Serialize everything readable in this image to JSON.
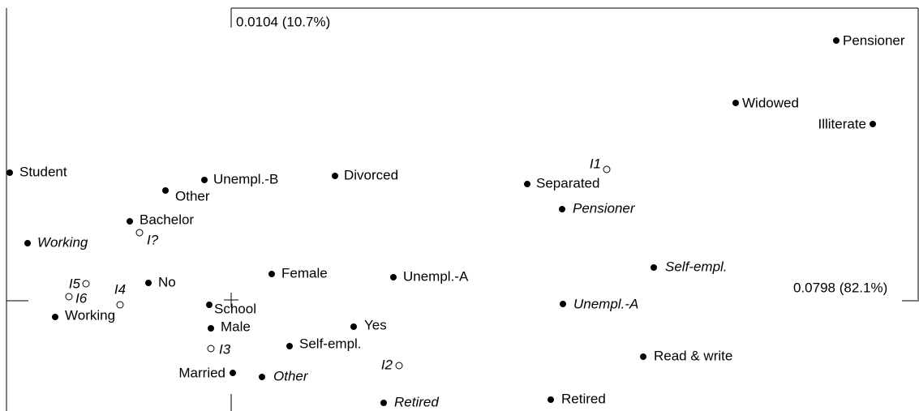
{
  "axes": {
    "horizontal": "0.0798 (82.1%)",
    "vertical": "0.0104 (10.7%)"
  },
  "points": [
    {
      "label": "Pensioner",
      "marker": "filled",
      "style": "normal"
    },
    {
      "label": "Widowed",
      "marker": "filled",
      "style": "normal"
    },
    {
      "label": "Illiterate",
      "marker": "filled",
      "style": "normal"
    },
    {
      "label": "Student",
      "marker": "filled",
      "style": "normal"
    },
    {
      "label": "Unempl.-B",
      "marker": "filled",
      "style": "normal"
    },
    {
      "label": "Divorced",
      "marker": "filled",
      "style": "normal"
    },
    {
      "label": "Other",
      "marker": "filled",
      "style": "normal"
    },
    {
      "label": "I1",
      "marker": "open",
      "style": "italic"
    },
    {
      "label": "Separated",
      "marker": "filled",
      "style": "normal"
    },
    {
      "label": "Pensioner",
      "marker": "filled",
      "style": "italic"
    },
    {
      "label": "Bachelor",
      "marker": "filled",
      "style": "normal"
    },
    {
      "label": "I?",
      "marker": "open",
      "style": "italic"
    },
    {
      "label": "Working",
      "marker": "filled",
      "style": "italic"
    },
    {
      "label": "Female",
      "marker": "filled",
      "style": "normal"
    },
    {
      "label": "Unempl.-A",
      "marker": "filled",
      "style": "normal"
    },
    {
      "label": "Self-empl.",
      "marker": "filled",
      "style": "italic"
    },
    {
      "label": "I5",
      "marker": "open",
      "style": "italic"
    },
    {
      "label": "I6",
      "marker": "open",
      "style": "italic"
    },
    {
      "label": "I4",
      "marker": "open",
      "style": "italic"
    },
    {
      "label": "No",
      "marker": "filled",
      "style": "normal"
    },
    {
      "label": "Working",
      "marker": "filled",
      "style": "normal"
    },
    {
      "label": "School",
      "marker": "filled",
      "style": "normal"
    },
    {
      "label": "Unempl.-A",
      "marker": "filled",
      "style": "italic"
    },
    {
      "label": "Male",
      "marker": "filled",
      "style": "normal"
    },
    {
      "label": "Yes",
      "marker": "filled",
      "style": "normal"
    },
    {
      "label": "I3",
      "marker": "open",
      "style": "italic"
    },
    {
      "label": "Self-empl.",
      "marker": "filled",
      "style": "normal"
    },
    {
      "label": "Read & write",
      "marker": "filled",
      "style": "normal"
    },
    {
      "label": "I2",
      "marker": "open",
      "style": "italic"
    },
    {
      "label": "Married",
      "marker": "filled",
      "style": "normal"
    },
    {
      "label": "Other",
      "marker": "filled",
      "style": "italic"
    },
    {
      "label": "Retired",
      "marker": "filled",
      "style": "italic"
    },
    {
      "label": "Retired",
      "marker": "filled",
      "style": "normal"
    }
  ]
}
